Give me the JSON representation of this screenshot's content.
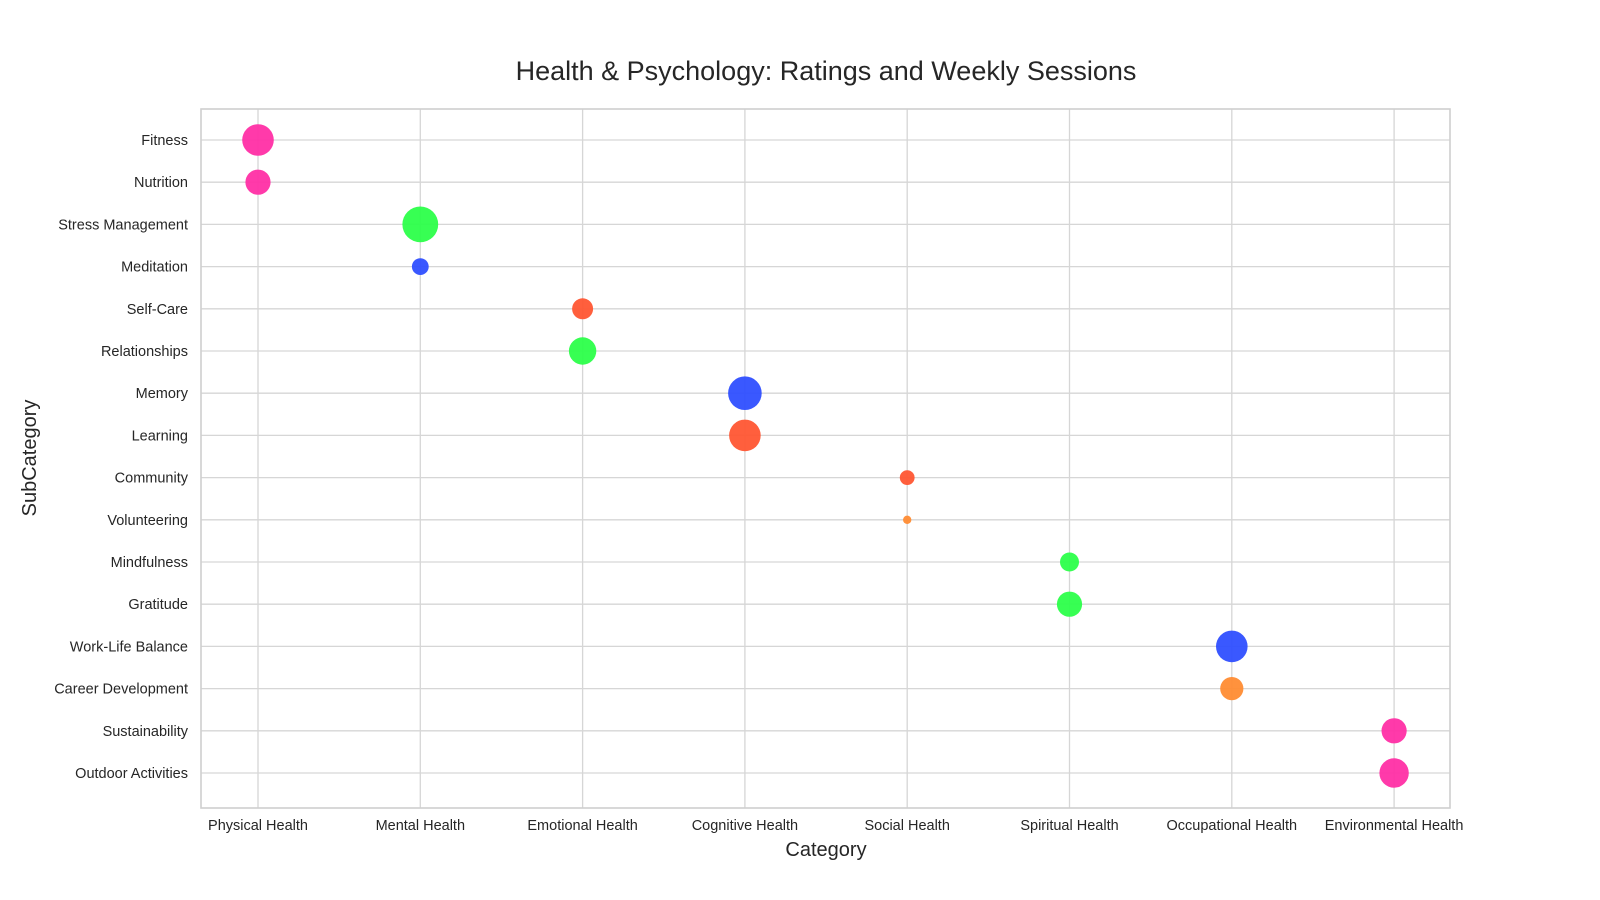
{
  "chart_data": {
    "type": "scatter",
    "title": "Health & Psychology: Ratings and Weekly Sessions",
    "xlabel": "Category",
    "ylabel": "SubCategory",
    "grid": true,
    "categories": [
      "Physical Health",
      "Mental Health",
      "Emotional Health",
      "Cognitive Health",
      "Social Health",
      "Spiritual Health",
      "Occupational Health",
      "Environmental Health"
    ],
    "subcategories": [
      "Fitness",
      "Nutrition",
      "Stress Management",
      "Meditation",
      "Self-Care",
      "Relationships",
      "Memory",
      "Learning",
      "Community",
      "Volunteering",
      "Mindfulness",
      "Gratitude",
      "Work-Life Balance",
      "Career Development",
      "Sustainability",
      "Outdoor Activities"
    ],
    "points": [
      {
        "category": "Physical Health",
        "subcategory": "Fitness",
        "size": 0.75,
        "color": "#ff2fa5"
      },
      {
        "category": "Physical Health",
        "subcategory": "Nutrition",
        "size": 0.6,
        "color": "#ff2fa5"
      },
      {
        "category": "Mental Health",
        "subcategory": "Stress Management",
        "size": 0.85,
        "color": "#2cff4a"
      },
      {
        "category": "Mental Health",
        "subcategory": "Meditation",
        "size": 0.4,
        "color": "#2f4fff"
      },
      {
        "category": "Emotional Health",
        "subcategory": "Self-Care",
        "size": 0.5,
        "color": "#ff5633"
      },
      {
        "category": "Emotional Health",
        "subcategory": "Relationships",
        "size": 0.65,
        "color": "#2cff4a"
      },
      {
        "category": "Cognitive Health",
        "subcategory": "Memory",
        "size": 0.8,
        "color": "#2f4fff"
      },
      {
        "category": "Cognitive Health",
        "subcategory": "Learning",
        "size": 0.75,
        "color": "#ff5633"
      },
      {
        "category": "Social Health",
        "subcategory": "Community",
        "size": 0.35,
        "color": "#ff5633"
      },
      {
        "category": "Social Health",
        "subcategory": "Volunteering",
        "size": 0.2,
        "color": "#ff8c33"
      },
      {
        "category": "Spiritual Health",
        "subcategory": "Mindfulness",
        "size": 0.45,
        "color": "#2cff4a"
      },
      {
        "category": "Spiritual Health",
        "subcategory": "Gratitude",
        "size": 0.6,
        "color": "#2cff4a"
      },
      {
        "category": "Occupational Health",
        "subcategory": "Work-Life Balance",
        "size": 0.75,
        "color": "#2f4fff"
      },
      {
        "category": "Occupational Health",
        "subcategory": "Career Development",
        "size": 0.55,
        "color": "#ff8c33"
      },
      {
        "category": "Environmental Health",
        "subcategory": "Sustainability",
        "size": 0.6,
        "color": "#ff2fa5"
      },
      {
        "category": "Environmental Health",
        "subcategory": "Outdoor Activities",
        "size": 0.7,
        "color": "#ff2fa5"
      }
    ]
  }
}
